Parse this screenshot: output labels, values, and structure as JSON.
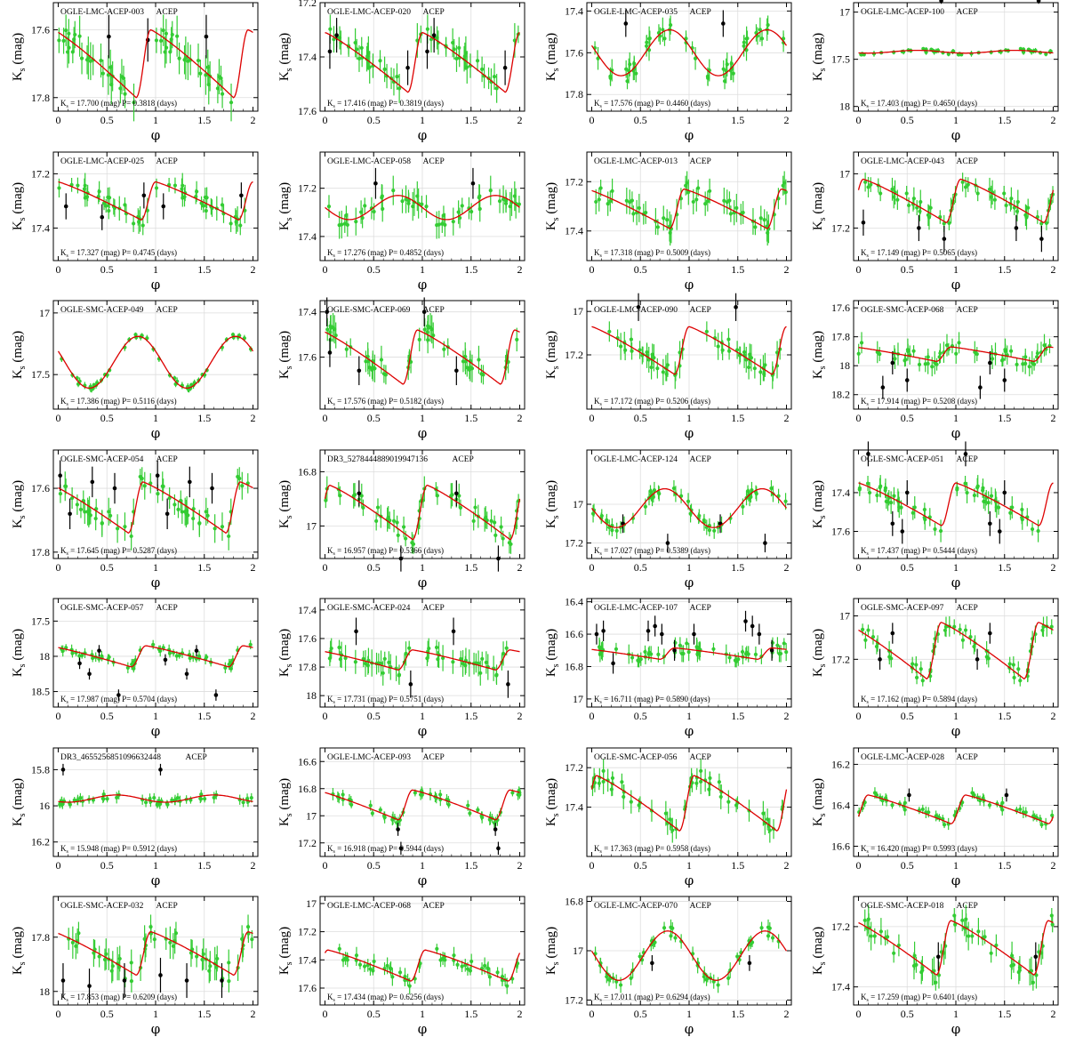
{
  "figure": {
    "ylabel_main": "K",
    "ylabel_sub": "s",
    "ylabel_tail": " (mag)",
    "xlabel": "φ",
    "ks_prefix": "K",
    "ks_prefix_sub": "s",
    "mag_unit": "(mag)",
    "period_prefix": "P=",
    "period_unit": "(days)",
    "colors": {
      "fit": "#dd0000",
      "good": "#33cc33",
      "outlier": "#000000",
      "grid": "#dddddd"
    }
  },
  "chart_data": [
    {
      "type": "scatter",
      "title": "OGLE-LMC-ACEP-003",
      "class": "ACEP",
      "ks": "17.700",
      "period": "0.3818",
      "ylim": [
        17.84,
        17.52
      ],
      "yticks": [
        "17.6",
        "17.8"
      ],
      "xticks": [
        "0",
        "0.5",
        "1",
        "1.5",
        "2"
      ],
      "mean": 17.7,
      "amp": 0.2,
      "shape": "saw",
      "phase0": 0.8,
      "scatter": 0.04,
      "outliers": [
        [
          0.52,
          17.62
        ],
        [
          0.92,
          17.63
        ],
        [
          1.52,
          17.62
        ]
      ]
    },
    {
      "type": "scatter",
      "title": "OGLE-LMC-ACEP-020",
      "class": "ACEP",
      "ks": "17.416",
      "period": "0.3819",
      "ylim": [
        17.6,
        17.2
      ],
      "yticks": [
        "17.2",
        "17.4",
        "17.6"
      ],
      "xticks": [
        "0",
        "0.5",
        "1",
        "1.5",
        "2"
      ],
      "mean": 17.42,
      "amp": 0.22,
      "shape": "saw",
      "phase0": 0.85,
      "scatter": 0.04,
      "outliers": [
        [
          0.05,
          17.38
        ],
        [
          0.12,
          17.32
        ],
        [
          0.85,
          17.44
        ],
        [
          1.05,
          17.38
        ],
        [
          1.12,
          17.32
        ],
        [
          1.85,
          17.44
        ]
      ]
    },
    {
      "type": "scatter",
      "title": "OGLE-LMC-ACEP-035",
      "class": "ACEP",
      "ks": "17.576",
      "period": "0.4460",
      "ylim": [
        17.88,
        17.36
      ],
      "yticks": [
        "17.4",
        "17.6",
        "17.8"
      ],
      "xticks": [
        "0",
        "0.5",
        "1",
        "1.5",
        "2"
      ],
      "mean": 17.6,
      "amp": 0.22,
      "shape": "sine",
      "phase0": 0.8,
      "scatter": 0.04,
      "outliers": [
        [
          0.35,
          17.46
        ],
        [
          1.35,
          17.46
        ]
      ]
    },
    {
      "type": "scatter",
      "title": "OGLE-LMC-ACEP-100",
      "class": "ACEP",
      "ks": "17.403",
      "period": "0.4650",
      "ylim": [
        18.05,
        16.9
      ],
      "yticks": [
        "17",
        "17.5",
        "18"
      ],
      "xticks": [
        "0",
        "0.5",
        "1",
        "1.5",
        "2"
      ],
      "mean": 17.42,
      "amp": 0.03,
      "shape": "sine",
      "phase0": 0.6,
      "scatter": 0.02,
      "outliers": [
        [
          0.85,
          16.88
        ],
        [
          1.85,
          16.88
        ]
      ]
    },
    {
      "type": "scatter",
      "title": "OGLE-LMC-ACEP-025",
      "class": "ACEP",
      "ks": "17.327",
      "period": "0.4745",
      "ylim": [
        17.52,
        17.12
      ],
      "yticks": [
        "17.2",
        "17.4"
      ],
      "xticks": [
        "0",
        "0.5",
        "1",
        "1.5",
        "2"
      ],
      "mean": 17.3,
      "amp": 0.14,
      "shape": "saw",
      "phase0": 0.85,
      "scatter": 0.03,
      "outliers": [
        [
          0.08,
          17.32
        ],
        [
          0.45,
          17.36
        ],
        [
          0.88,
          17.28
        ],
        [
          1.08,
          17.32
        ],
        [
          1.88,
          17.28
        ]
      ]
    },
    {
      "type": "scatter",
      "title": "OGLE-LMC-ACEP-058",
      "class": "ACEP",
      "ks": "17.276",
      "period": "0.4852",
      "ylim": [
        17.5,
        17.05
      ],
      "yticks": [
        "17.2",
        "17.4"
      ],
      "xticks": [
        "0",
        "0.5",
        "1",
        "1.5",
        "2"
      ],
      "mean": 17.28,
      "amp": 0.1,
      "shape": "sine",
      "phase0": 0.75,
      "scatter": 0.04,
      "outliers": [
        [
          0.52,
          17.18
        ],
        [
          1.52,
          17.18
        ]
      ]
    },
    {
      "type": "scatter",
      "title": "OGLE-LMC-ACEP-013",
      "class": "ACEP",
      "ks": "17.318",
      "period": "0.5009",
      "ylim": [
        17.52,
        17.08
      ],
      "yticks": [
        "17.2",
        "17.4"
      ],
      "xticks": [
        "0",
        "0.5",
        "1",
        "1.5",
        "2"
      ],
      "mean": 17.31,
      "amp": 0.16,
      "shape": "saw",
      "phase0": 0.8,
      "scatter": 0.04,
      "outliers": []
    },
    {
      "type": "scatter",
      "title": "OGLE-LMC-ACEP-043",
      "class": "ACEP",
      "ks": "17.149",
      "period": "0.5065",
      "ylim": [
        17.32,
        16.92
      ],
      "yticks": [
        "17",
        "17.2"
      ],
      "xticks": [
        "0",
        "0.5",
        "1",
        "1.5",
        "2"
      ],
      "mean": 17.1,
      "amp": 0.16,
      "shape": "saw",
      "phase0": 0.9,
      "scatter": 0.03,
      "outliers": [
        [
          0.05,
          17.18
        ],
        [
          0.62,
          17.2
        ],
        [
          0.88,
          17.24
        ],
        [
          1.62,
          17.2
        ],
        [
          1.88,
          17.24
        ]
      ]
    },
    {
      "type": "scatter",
      "title": "OGLE-SMC-ACEP-049",
      "class": "ACEP",
      "ks": "17.386",
      "period": "0.5116",
      "ylim": [
        17.78,
        16.9
      ],
      "yticks": [
        "17",
        "17.5"
      ],
      "xticks": [
        "0",
        "0.5",
        "1",
        "1.5",
        "2"
      ],
      "mean": 17.4,
      "amp": 0.42,
      "shape": "sine",
      "phase0": 0.82,
      "scatter": 0.02,
      "outliers": []
    },
    {
      "type": "scatter",
      "title": "OGLE-SMC-ACEP-069",
      "class": "ACEP",
      "ks": "17.576",
      "period": "0.5182",
      "ylim": [
        17.83,
        17.35
      ],
      "yticks": [
        "17.4",
        "17.6"
      ],
      "xticks": [
        "0",
        "0.5",
        "1",
        "1.5",
        "2"
      ],
      "mean": 17.6,
      "amp": 0.24,
      "shape": "saw",
      "phase0": 0.8,
      "scatter": 0.04,
      "outliers": [
        [
          0.02,
          17.4
        ],
        [
          0.05,
          17.58
        ],
        [
          0.35,
          17.66
        ],
        [
          1.02,
          17.4
        ],
        [
          1.35,
          17.66
        ]
      ]
    },
    {
      "type": "scatter",
      "title": "OGLE-LMC-ACEP-090",
      "class": "ACEP",
      "ks": "17.172",
      "period": "0.5206",
      "ylim": [
        17.45,
        16.95
      ],
      "yticks": [
        "17",
        "17.2"
      ],
      "xticks": [
        "0",
        "0.5",
        "1",
        "1.5",
        "2"
      ],
      "mean": 17.18,
      "amp": 0.22,
      "shape": "saw",
      "phase0": 0.85,
      "scatter": 0.04,
      "outliers": [
        [
          0.48,
          16.98
        ],
        [
          1.48,
          16.98
        ]
      ]
    },
    {
      "type": "scatter",
      "title": "OGLE-SMC-ACEP-068",
      "class": "ACEP",
      "ks": "17.914",
      "period": "0.5208",
      "ylim": [
        18.3,
        17.55
      ],
      "yticks": [
        "17.6",
        "17.8",
        "18",
        "18.2"
      ],
      "xticks": [
        "0",
        "0.5",
        "1",
        "1.5",
        "2"
      ],
      "mean": 17.92,
      "amp": 0.1,
      "shape": "saw",
      "phase0": 0.8,
      "scatter": 0.05,
      "outliers": [
        [
          0.25,
          18.15
        ],
        [
          0.35,
          17.98
        ],
        [
          0.5,
          18.1
        ],
        [
          1.25,
          18.15
        ],
        [
          1.35,
          17.98
        ],
        [
          1.5,
          18.1
        ]
      ]
    },
    {
      "type": "scatter",
      "title": "OGLE-SMC-ACEP-054",
      "class": "ACEP",
      "ks": "17.645",
      "period": "0.5287",
      "ylim": [
        17.82,
        17.48
      ],
      "yticks": [
        "17.6",
        "17.8"
      ],
      "xticks": [
        "0",
        "0.5",
        "1",
        "1.5",
        "2"
      ],
      "mean": 17.66,
      "amp": 0.16,
      "shape": "saw",
      "phase0": 0.72,
      "scatter": 0.03,
      "outliers": [
        [
          0.02,
          17.56
        ],
        [
          0.12,
          17.68
        ],
        [
          0.35,
          17.58
        ],
        [
          0.58,
          17.6
        ],
        [
          1.02,
          17.56
        ],
        [
          1.12,
          17.68
        ],
        [
          1.35,
          17.58
        ],
        [
          1.58,
          17.6
        ]
      ]
    },
    {
      "type": "scatter",
      "title": "DR3_5278444889019947136",
      "class": "ACEP",
      "ks": "16.957",
      "period": "0.5366",
      "ylim": [
        17.12,
        16.72
      ],
      "yticks": [
        "16.8",
        "17"
      ],
      "xticks": [
        "0",
        "0.5",
        "1",
        "1.5",
        "2"
      ],
      "mean": 16.95,
      "amp": 0.2,
      "shape": "saw",
      "phase0": 0.9,
      "scatter": 0.03,
      "outliers": [
        [
          0.35,
          16.88
        ],
        [
          0.78,
          17.12
        ],
        [
          1.35,
          16.88
        ],
        [
          1.78,
          17.12
        ]
      ]
    },
    {
      "type": "scatter",
      "title": "OGLE-LMC-ACEP-124",
      "class": "ACEP",
      "ks": "17.027",
      "period": "0.5389",
      "ylim": [
        17.28,
        16.72
      ],
      "yticks": [
        "17",
        "17.2"
      ],
      "xticks": [
        "0",
        "0.5",
        "1",
        "1.5",
        "2"
      ],
      "mean": 17.02,
      "amp": 0.2,
      "shape": "sine",
      "phase0": 0.75,
      "scatter": 0.03,
      "outliers": [
        [
          0.32,
          17.1
        ],
        [
          0.78,
          17.2
        ],
        [
          1.32,
          17.1
        ],
        [
          1.78,
          17.2
        ]
      ]
    },
    {
      "type": "scatter",
      "title": "OGLE-SMC-ACEP-051",
      "class": "ACEP",
      "ks": "17.437",
      "period": "0.5444",
      "ylim": [
        17.74,
        17.18
      ],
      "yticks": [
        "17.4",
        "17.6"
      ],
      "xticks": [
        "0",
        "0.5",
        "1",
        "1.5",
        "2"
      ],
      "mean": 17.46,
      "amp": 0.22,
      "shape": "saw",
      "phase0": 0.85,
      "scatter": 0.04,
      "outliers": [
        [
          0.1,
          17.2
        ],
        [
          0.35,
          17.56
        ],
        [
          0.45,
          17.6
        ],
        [
          0.5,
          17.4
        ],
        [
          1.1,
          17.2
        ],
        [
          1.35,
          17.56
        ],
        [
          1.45,
          17.6
        ],
        [
          1.5,
          17.4
        ]
      ]
    },
    {
      "type": "scatter",
      "title": "OGLE-SMC-ACEP-057",
      "class": "ACEP",
      "ks": "17.987",
      "period": "0.5704",
      "ylim": [
        18.72,
        17.18
      ],
      "yticks": [
        "17.5",
        "18",
        "18.5"
      ],
      "xticks": [
        "0",
        "0.5",
        "1",
        "1.5",
        "2"
      ],
      "mean": 18.0,
      "amp": 0.3,
      "shape": "saw",
      "phase0": 0.75,
      "scatter": 0.05,
      "outliers": [
        [
          0.22,
          18.1
        ],
        [
          0.32,
          18.25
        ],
        [
          0.42,
          17.92
        ],
        [
          0.62,
          18.55
        ],
        [
          1.1,
          18.05
        ],
        [
          1.32,
          18.25
        ],
        [
          1.42,
          17.92
        ],
        [
          1.62,
          18.55
        ]
      ]
    },
    {
      "type": "scatter",
      "title": "OGLE-SMC-ACEP-024",
      "class": "ACEP",
      "ks": "17.731",
      "period": "0.5751",
      "ylim": [
        18.08,
        17.32
      ],
      "yticks": [
        "17.4",
        "17.6",
        "17.8",
        "18"
      ],
      "xticks": [
        "0",
        "0.5",
        "1",
        "1.5",
        "2"
      ],
      "mean": 17.75,
      "amp": 0.14,
      "shape": "saw",
      "phase0": 0.75,
      "scatter": 0.06,
      "outliers": [
        [
          0.32,
          17.55
        ],
        [
          0.88,
          17.92
        ],
        [
          1.32,
          17.55
        ],
        [
          1.88,
          17.92
        ]
      ]
    },
    {
      "type": "scatter",
      "title": "OGLE-LMC-ACEP-107",
      "class": "ACEP",
      "ks": "16.711",
      "period": "0.5890",
      "ylim": [
        17.05,
        16.38
      ],
      "yticks": [
        "16.4",
        "16.6",
        "16.8",
        "17"
      ],
      "xticks": [
        "0",
        "0.5",
        "1",
        "1.5",
        "2"
      ],
      "mean": 16.72,
      "amp": 0.07,
      "shape": "saw",
      "phase0": 0.7,
      "scatter": 0.04,
      "outliers": [
        [
          0.05,
          16.6
        ],
        [
          0.12,
          16.58
        ],
        [
          0.22,
          16.78
        ],
        [
          0.58,
          16.58
        ],
        [
          0.65,
          16.55
        ],
        [
          0.72,
          16.6
        ],
        [
          0.85,
          16.7
        ],
        [
          1.05,
          16.6
        ],
        [
          1.58,
          16.52
        ],
        [
          1.65,
          16.55
        ],
        [
          1.72,
          16.6
        ],
        [
          1.85,
          16.7
        ]
      ]
    },
    {
      "type": "scatter",
      "title": "OGLE-SMC-ACEP-097",
      "class": "ACEP",
      "ks": "17.162",
      "period": "0.5894",
      "ylim": [
        17.42,
        16.92
      ],
      "yticks": [
        "17",
        "17.2"
      ],
      "xticks": [
        "0",
        "0.5",
        "1",
        "1.5",
        "2"
      ],
      "mean": 17.16,
      "amp": 0.26,
      "shape": "saw",
      "phase0": 0.7,
      "scatter": 0.03,
      "outliers": [
        [
          0.22,
          17.2
        ],
        [
          0.35,
          17.08
        ],
        [
          1.22,
          17.2
        ],
        [
          1.35,
          17.08
        ]
      ]
    },
    {
      "type": "scatter",
      "title": "DR3_4655256851096632448",
      "class": "ACEP",
      "ks": "15.948",
      "period": "0.5912",
      "ylim": [
        16.28,
        15.68
      ],
      "yticks": [
        "15.8",
        "16",
        "16.2"
      ],
      "xticks": [
        "0",
        "0.5",
        "1",
        "1.5",
        "2"
      ],
      "mean": 15.96,
      "amp": 0.04,
      "shape": "sine",
      "phase0": 0.6,
      "scatter": 0.02,
      "outliers": [
        [
          0.05,
          15.8
        ],
        [
          1.05,
          15.8
        ]
      ]
    },
    {
      "type": "scatter",
      "title": "OGLE-LMC-ACEP-093",
      "class": "ACEP",
      "ks": "16.918",
      "period": "0.5944",
      "ylim": [
        17.3,
        16.5
      ],
      "yticks": [
        "16.6",
        "16.8",
        "17",
        "17.2"
      ],
      "xticks": [
        "0",
        "0.5",
        "1",
        "1.5",
        "2"
      ],
      "mean": 16.92,
      "amp": 0.22,
      "shape": "saw",
      "phase0": 0.75,
      "scatter": 0.03,
      "outliers": [
        [
          0.75,
          17.1
        ],
        [
          0.78,
          17.24
        ],
        [
          1.75,
          17.1
        ],
        [
          1.78,
          17.24
        ]
      ]
    },
    {
      "type": "scatter",
      "title": "OGLE-SMC-ACEP-056",
      "class": "ACEP",
      "ks": "17.363",
      "period": "0.5958",
      "ylim": [
        17.65,
        17.1
      ],
      "yticks": [
        "17.2",
        "17.4"
      ],
      "xticks": [
        "0",
        "0.5",
        "1",
        "1.5",
        "2"
      ],
      "mean": 17.38,
      "amp": 0.28,
      "shape": "saw",
      "phase0": 0.9,
      "scatter": 0.04,
      "outliers": []
    },
    {
      "type": "scatter",
      "title": "OGLE-LMC-ACEP-028",
      "class": "ACEP",
      "ks": "16.420",
      "period": "0.5993",
      "ylim": [
        16.65,
        16.12
      ],
      "yticks": [
        "16.2",
        "16.4",
        "16.6"
      ],
      "xticks": [
        "0",
        "0.5",
        "1",
        "1.5",
        "2"
      ],
      "mean": 16.42,
      "amp": 0.14,
      "shape": "saw",
      "phase0": 0.95,
      "scatter": 0.02,
      "outliers": [
        [
          0.52,
          16.35
        ],
        [
          1.52,
          16.35
        ]
      ]
    },
    {
      "type": "scatter",
      "title": "OGLE-SMC-ACEP-032",
      "class": "ACEP",
      "ks": "17.853",
      "period": "0.6209",
      "ylim": [
        18.05,
        17.65
      ],
      "yticks": [
        "17.8",
        "18"
      ],
      "xticks": [
        "0",
        "0.5",
        "1",
        "1.5",
        "2"
      ],
      "mean": 17.86,
      "amp": 0.16,
      "shape": "saw",
      "phase0": 0.8,
      "scatter": 0.04,
      "outliers": [
        [
          0.05,
          17.96
        ],
        [
          0.32,
          17.98
        ],
        [
          0.68,
          17.96
        ],
        [
          1.05,
          17.94
        ],
        [
          1.32,
          17.96
        ],
        [
          1.68,
          17.96
        ]
      ]
    },
    {
      "type": "scatter",
      "title": "OGLE-LMC-ACEP-068",
      "class": "ACEP",
      "ks": "17.434",
      "period": "0.6256",
      "ylim": [
        17.72,
        16.95
      ],
      "yticks": [
        "17",
        "17.2",
        "17.4",
        "17.6"
      ],
      "xticks": [
        "0",
        "0.5",
        "1",
        "1.5",
        "2"
      ],
      "mean": 17.44,
      "amp": 0.22,
      "shape": "saw",
      "phase0": 0.88,
      "scatter": 0.04,
      "outliers": []
    },
    {
      "type": "scatter",
      "title": "OGLE-LMC-ACEP-070",
      "class": "ACEP",
      "ks": "17.011",
      "period": "0.6294",
      "ylim": [
        17.22,
        16.78
      ],
      "yticks": [
        "16.8",
        "17",
        "17.2"
      ],
      "xticks": [
        "0",
        "0.5",
        "1",
        "1.5",
        "2"
      ],
      "mean": 17.02,
      "amp": 0.2,
      "shape": "sine",
      "phase0": 0.78,
      "scatter": 0.02,
      "outliers": [
        [
          0.62,
          17.05
        ],
        [
          1.62,
          17.05
        ]
      ]
    },
    {
      "type": "scatter",
      "title": "OGLE-SMC-ACEP-018",
      "class": "ACEP",
      "ks": "17.259",
      "period": "0.6401",
      "ylim": [
        17.46,
        17.1
      ],
      "yticks": [
        "17.2",
        "17.4"
      ],
      "xticks": [
        "0",
        "0.5",
        "1",
        "1.5",
        "2"
      ],
      "mean": 17.27,
      "amp": 0.18,
      "shape": "saw",
      "phase0": 0.8,
      "scatter": 0.03,
      "outliers": [
        [
          0.82,
          17.3
        ],
        [
          1.82,
          17.3
        ]
      ]
    }
  ]
}
